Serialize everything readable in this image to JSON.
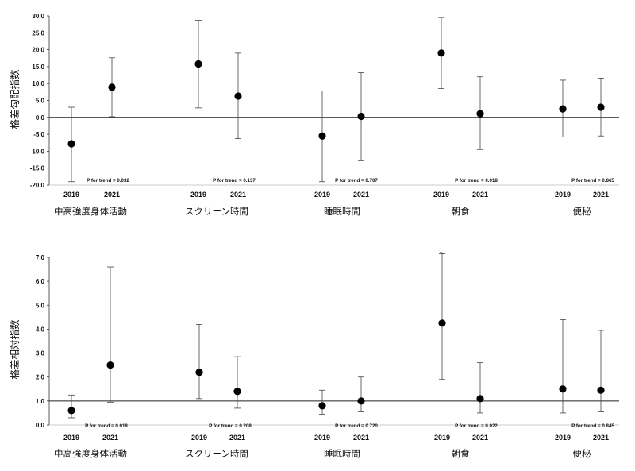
{
  "chart_data": [
    {
      "type": "scatter",
      "ylabel": "格差勾配指数",
      "ylim": [
        -20,
        30
      ],
      "yticks": [
        "-20.0",
        "-15.0",
        "-10.0",
        "-5.0",
        "0.0",
        "5.0",
        "10.0",
        "15.0",
        "20.0",
        "25.0",
        "30.0"
      ],
      "tick_values": [
        -20,
        -15,
        -10,
        -5,
        0,
        5,
        10,
        15,
        20,
        25,
        30
      ],
      "reference_line": 0,
      "groups": [
        {
          "name": "中高強度身体活動",
          "p_trend": "P for trend = 0.032",
          "points": [
            {
              "year": "2019",
              "value": -7.8,
              "low": -19.0,
              "high": 3.0
            },
            {
              "year": "2021",
              "value": 8.9,
              "low": 0.2,
              "high": 17.6
            }
          ]
        },
        {
          "name": "スクリーン時間",
          "p_trend": "P for trend = 0.137",
          "points": [
            {
              "year": "2019",
              "value": 15.8,
              "low": 2.8,
              "high": 28.7
            },
            {
              "year": "2021",
              "value": 6.3,
              "low": -6.3,
              "high": 19.0
            }
          ]
        },
        {
          "name": "睡眠時間",
          "p_trend": "P for trend = 0.707",
          "points": [
            {
              "year": "2019",
              "value": -5.5,
              "low": -19.0,
              "high": 7.8
            },
            {
              "year": "2021",
              "value": 0.3,
              "low": -12.8,
              "high": 13.2
            }
          ]
        },
        {
          "name": "朝食",
          "p_trend": "P for trend = 0.018",
          "points": [
            {
              "year": "2019",
              "value": 19.0,
              "low": 8.5,
              "high": 29.5
            },
            {
              "year": "2021",
              "value": 1.1,
              "low": -9.5,
              "high": 12.0
            }
          ]
        },
        {
          "name": "便秘",
          "p_trend": "P for trend = 0.865",
          "points": [
            {
              "year": "2019",
              "value": 2.5,
              "low": -5.8,
              "high": 11.0
            },
            {
              "year": "2021",
              "value": 3.0,
              "low": -5.5,
              "high": 11.6
            }
          ]
        }
      ]
    },
    {
      "type": "scatter",
      "ylabel": "格差相対指数",
      "ylim": [
        0,
        7
      ],
      "yticks": [
        "0.0",
        "1.0",
        "2.0",
        "3.0",
        "4.0",
        "5.0",
        "6.0",
        "7.0"
      ],
      "tick_values": [
        0,
        1,
        2,
        3,
        4,
        5,
        6,
        7
      ],
      "reference_line": 1,
      "groups": [
        {
          "name": "中高強度身体活動",
          "p_trend": "P for trend = 0.018",
          "points": [
            {
              "year": "2019",
              "value": 0.6,
              "low": 0.3,
              "high": 1.25
            },
            {
              "year": "2021",
              "value": 2.5,
              "low": 0.95,
              "high": 6.6
            }
          ]
        },
        {
          "name": "スクリーン時間",
          "p_trend": "P for trend = 0.208",
          "points": [
            {
              "year": "2019",
              "value": 2.2,
              "low": 1.1,
              "high": 4.2
            },
            {
              "year": "2021",
              "value": 1.4,
              "low": 0.7,
              "high": 2.85
            }
          ]
        },
        {
          "name": "睡眠時間",
          "p_trend": "P for trend = 0.720",
          "points": [
            {
              "year": "2019",
              "value": 0.8,
              "low": 0.45,
              "high": 1.45
            },
            {
              "year": "2021",
              "value": 1.0,
              "low": 0.55,
              "high": 2.0
            }
          ]
        },
        {
          "name": "朝食",
          "p_trend": "P for trend = 0.022",
          "points": [
            {
              "year": "2019",
              "value": 4.25,
              "low": 1.9,
              "high": 7.2,
              "truncated": true
            },
            {
              "year": "2021",
              "value": 1.1,
              "low": 0.5,
              "high": 2.6
            }
          ]
        },
        {
          "name": "便秘",
          "p_trend": "P for trend = 0.845",
          "points": [
            {
              "year": "2019",
              "value": 1.5,
              "low": 0.5,
              "high": 4.4
            },
            {
              "year": "2021",
              "value": 1.45,
              "low": 0.55,
              "high": 3.95
            }
          ]
        }
      ]
    }
  ]
}
